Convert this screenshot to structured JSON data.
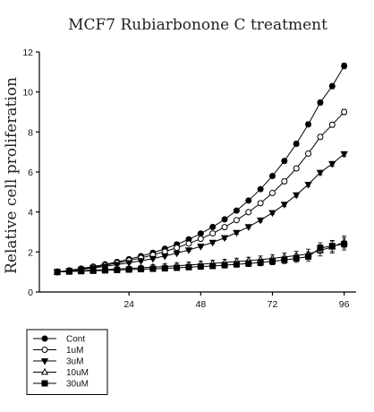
{
  "chart_data": {
    "type": "line",
    "title": "MCF7 Rubiarbonone C treatment",
    "ylabel": "Relative cell proliferation",
    "xlabel": "",
    "xlim": [
      -6,
      100
    ],
    "ylim": [
      0,
      12
    ],
    "xticks": [
      24,
      48,
      72,
      96
    ],
    "yticks": [
      0,
      2,
      4,
      6,
      8,
      10,
      12
    ],
    "grid": false,
    "legend_position": "bottom-left",
    "x": [
      0,
      4,
      8,
      12,
      16,
      20,
      24,
      28,
      32,
      36,
      40,
      44,
      48,
      52,
      56,
      60,
      64,
      68,
      72,
      76,
      80,
      84,
      88,
      92,
      96
    ],
    "series": [
      {
        "name": "Cont",
        "marker": "filled-circle",
        "values": [
          1.0,
          1.08,
          1.17,
          1.27,
          1.38,
          1.5,
          1.64,
          1.79,
          1.96,
          2.16,
          2.38,
          2.63,
          2.92,
          3.25,
          3.63,
          4.07,
          4.57,
          5.14,
          5.8,
          6.55,
          7.41,
          8.38,
          9.47,
          10.29,
          11.3
        ],
        "errors": [
          0.04,
          0.05,
          0.05,
          0.05,
          0.05,
          0.06,
          0.06,
          0.06,
          0.06,
          0.07,
          0.07,
          0.07,
          0.08,
          0.08,
          0.08,
          0.09,
          0.09,
          0.1,
          0.1,
          0.11,
          0.11,
          0.12,
          0.12,
          0.13,
          0.14
        ]
      },
      {
        "name": "1uM",
        "marker": "open-circle",
        "values": [
          1.0,
          1.07,
          1.15,
          1.24,
          1.34,
          1.45,
          1.57,
          1.7,
          1.85,
          2.02,
          2.21,
          2.42,
          2.66,
          2.93,
          3.24,
          3.59,
          3.99,
          4.44,
          4.95,
          5.53,
          6.18,
          6.92,
          7.75,
          8.36,
          9.0
        ],
        "errors": [
          0.04,
          0.04,
          0.05,
          0.05,
          0.05,
          0.05,
          0.06,
          0.06,
          0.06,
          0.06,
          0.07,
          0.07,
          0.07,
          0.08,
          0.08,
          0.08,
          0.09,
          0.09,
          0.1,
          0.1,
          0.11,
          0.11,
          0.12,
          0.12,
          0.13
        ]
      },
      {
        "name": "3uM",
        "marker": "filled-triangle-down",
        "values": [
          1.0,
          1.06,
          1.13,
          1.2,
          1.28,
          1.37,
          1.46,
          1.56,
          1.67,
          1.8,
          1.94,
          2.1,
          2.28,
          2.48,
          2.71,
          2.97,
          3.26,
          3.59,
          3.96,
          4.38,
          4.85,
          5.38,
          5.97,
          6.41,
          6.9
        ],
        "errors": [
          0.04,
          0.04,
          0.04,
          0.05,
          0.05,
          0.05,
          0.05,
          0.06,
          0.06,
          0.06,
          0.06,
          0.07,
          0.07,
          0.07,
          0.08,
          0.08,
          0.08,
          0.09,
          0.09,
          0.1,
          0.1,
          0.11,
          0.11,
          0.12,
          0.12
        ]
      },
      {
        "name": "10uM",
        "marker": "open-triangle-up",
        "values": [
          1.0,
          1.03,
          1.06,
          1.09,
          1.12,
          1.15,
          1.18,
          1.21,
          1.24,
          1.27,
          1.31,
          1.35,
          1.39,
          1.43,
          1.47,
          1.52,
          1.57,
          1.62,
          1.68,
          1.75,
          1.82,
          1.9,
          2.08,
          2.25,
          2.5
        ],
        "errors": [
          0.05,
          0.06,
          0.07,
          0.08,
          0.09,
          0.1,
          0.1,
          0.11,
          0.12,
          0.13,
          0.14,
          0.14,
          0.15,
          0.16,
          0.16,
          0.17,
          0.17,
          0.18,
          0.19,
          0.2,
          0.22,
          0.24,
          0.28,
          0.3,
          0.3
        ]
      },
      {
        "name": "30uM",
        "marker": "filled-square",
        "values": [
          1.0,
          1.02,
          1.04,
          1.06,
          1.08,
          1.1,
          1.12,
          1.14,
          1.16,
          1.18,
          1.21,
          1.24,
          1.27,
          1.3,
          1.34,
          1.38,
          1.42,
          1.47,
          1.53,
          1.6,
          1.68,
          1.77,
          2.2,
          2.3,
          2.4
        ],
        "errors": [
          0.05,
          0.05,
          0.06,
          0.06,
          0.07,
          0.08,
          0.08,
          0.09,
          0.1,
          0.1,
          0.11,
          0.12,
          0.12,
          0.13,
          0.14,
          0.14,
          0.15,
          0.16,
          0.17,
          0.18,
          0.2,
          0.22,
          0.26,
          0.28,
          0.3
        ]
      }
    ]
  }
}
